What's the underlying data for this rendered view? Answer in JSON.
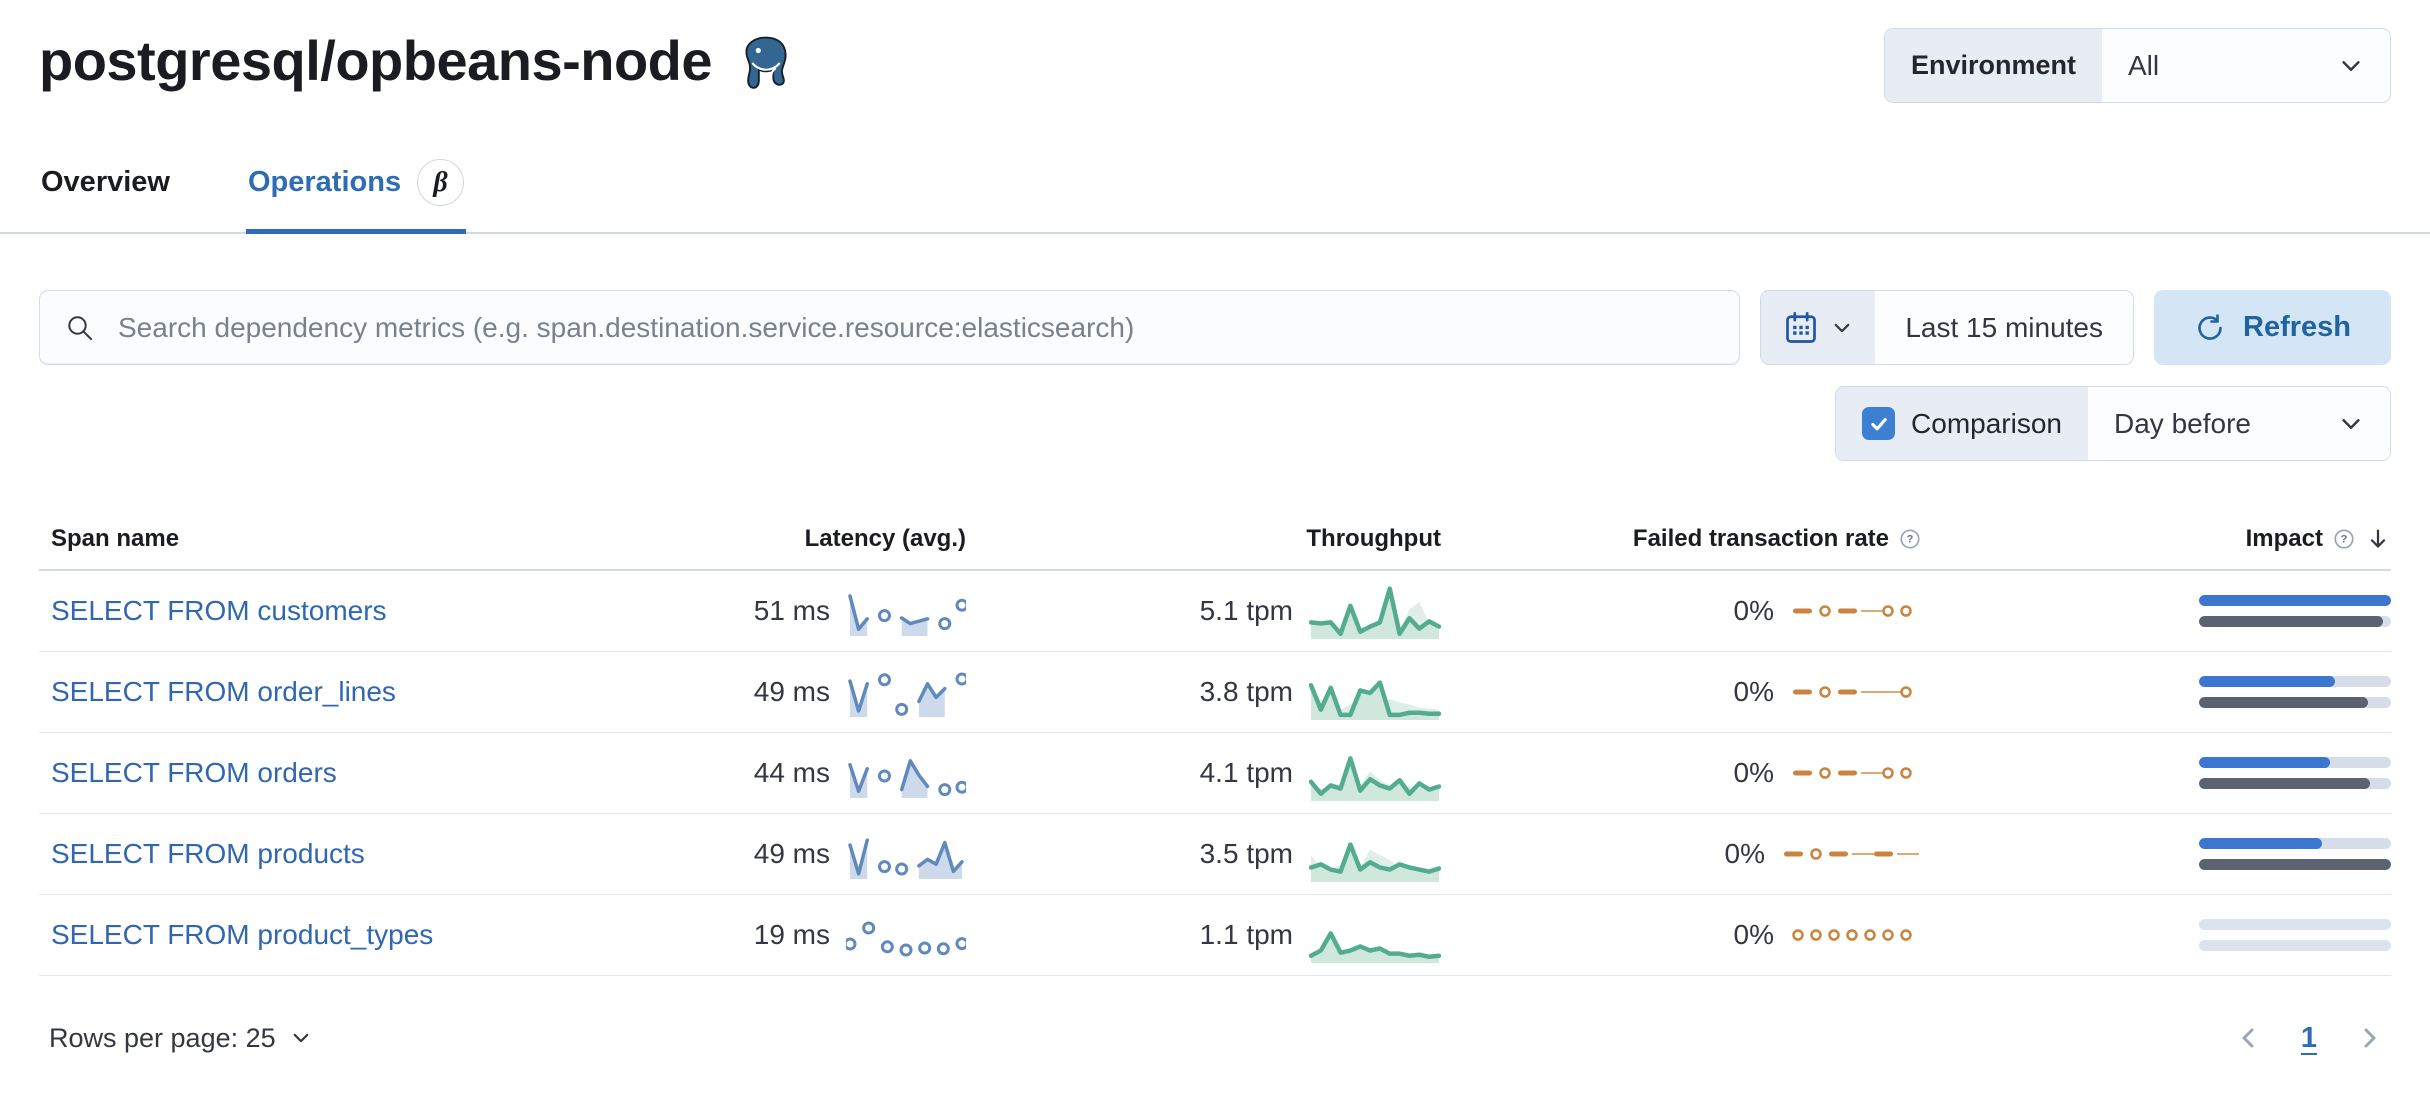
{
  "header": {
    "title": "postgresql/opbeans-node",
    "environment_label": "Environment",
    "environment_value": "All"
  },
  "tabs": [
    {
      "label": "Overview",
      "active": false
    },
    {
      "label": "Operations",
      "active": true,
      "badge": "β"
    }
  ],
  "toolbar": {
    "search_placeholder": "Search dependency metrics (e.g. span.destination.service.resource:elasticsearch)",
    "time_range": "Last 15 minutes",
    "refresh_label": "Refresh",
    "comparison_label": "Comparison",
    "comparison_checked": true,
    "comparison_value": "Day before"
  },
  "table": {
    "columns": {
      "span_name": "Span name",
      "latency": "Latency (avg.)",
      "throughput": "Throughput",
      "failed_rate": "Failed transaction rate",
      "impact": "Impact"
    },
    "sort": {
      "column": "Impact",
      "direction": "desc"
    },
    "rows": [
      {
        "span_name": "SELECT FROM customers",
        "latency": "51 ms",
        "throughput": "5.1 tpm",
        "failed_rate": "0%",
        "impact_pct": 100,
        "impact_prev_pct": 96,
        "latency_spark": [
          95,
          12,
          38,
          null,
          46,
          null,
          40,
          26,
          32,
          38,
          null,
          26,
          null,
          72
        ],
        "throughput_spark": {
          "current": [
            30,
            28,
            30,
            8,
            62,
            12,
            22,
            30,
            95,
            8,
            38,
            18,
            32,
            22
          ],
          "previous": [
            18,
            22,
            18,
            14,
            30,
            22,
            18,
            26,
            22,
            18,
            55,
            70,
            28,
            18
          ]
        },
        "failed_spark": [
          "dash",
          "ring",
          "dash",
          "thin",
          "ring",
          "ring"
        ]
      },
      {
        "span_name": "SELECT FROM order_lines",
        "latency": "49 ms",
        "throughput": "3.8 tpm",
        "failed_rate": "0%",
        "impact_pct": 71,
        "impact_prev_pct": 88,
        "latency_spark": [
          85,
          10,
          78,
          null,
          88,
          null,
          14,
          null,
          34,
          78,
          44,
          66,
          null,
          90
        ],
        "throughput_spark": {
          "current": [
            65,
            18,
            60,
            8,
            8,
            55,
            50,
            70,
            8,
            8,
            12,
            12,
            10,
            10
          ],
          "previous": [
            28,
            38,
            22,
            18,
            28,
            40,
            52,
            32,
            38,
            32,
            28,
            22,
            20,
            18
          ]
        },
        "failed_spark": [
          "dash",
          "ring",
          "dash",
          "thin",
          "thin",
          "ring"
        ]
      },
      {
        "span_name": "SELECT FROM orders",
        "latency": "44 ms",
        "throughput": "4.1 tpm",
        "failed_rate": "0%",
        "impact_pct": 68,
        "impact_prev_pct": 89,
        "latency_spark": [
          78,
          12,
          68,
          null,
          50,
          null,
          16,
          88,
          52,
          24,
          null,
          16,
          null,
          22
        ],
        "throughput_spark": {
          "current": [
            35,
            12,
            28,
            22,
            80,
            18,
            40,
            28,
            22,
            38,
            12,
            32,
            20,
            26
          ],
          "previous": [
            28,
            22,
            18,
            28,
            32,
            28,
            55,
            38,
            28,
            22,
            28,
            18,
            16,
            20
          ]
        },
        "failed_spark": [
          "dash",
          "ring",
          "dash",
          "thin",
          "ring",
          "ring"
        ]
      },
      {
        "span_name": "SELECT FROM products",
        "latency": "49 ms",
        "throughput": "3.5 tpm",
        "failed_rate": "0%",
        "impact_pct": 64,
        "impact_prev_pct": 100,
        "latency_spark": [
          80,
          8,
          92,
          null,
          26,
          null,
          20,
          null,
          28,
          44,
          32,
          86,
          14,
          38
        ],
        "throughput_spark": {
          "current": [
            26,
            32,
            22,
            18,
            70,
            22,
            36,
            26,
            22,
            32,
            26,
            22,
            18,
            24
          ],
          "previous": [
            50,
            26,
            22,
            32,
            36,
            26,
            60,
            50,
            40,
            26,
            32,
            22,
            18,
            20
          ]
        },
        "failed_spark": [
          "dash",
          "ring",
          "dash",
          "thin",
          "dash",
          "thin"
        ]
      },
      {
        "span_name": "SELECT FROM product_types",
        "latency": "19 ms",
        "throughput": "1.1 tpm",
        "failed_rate": "0%",
        "impact_pct": 0,
        "impact_prev_pct": 0,
        "latency_spark": [
          35,
          null,
          75,
          null,
          28,
          null,
          20,
          null,
          25,
          null,
          23,
          null,
          36
        ],
        "throughput_spark": {
          "current": [
            12,
            22,
            55,
            18,
            22,
            30,
            22,
            26,
            16,
            16,
            12,
            14,
            10,
            12
          ],
          "previous": [
            8,
            12,
            25,
            12,
            14,
            16,
            14,
            18,
            12,
            10,
            8,
            10,
            8,
            8
          ]
        },
        "failed_spark": [
          "ring",
          "ring",
          "ring",
          "ring",
          "ring",
          "ring",
          "ring"
        ]
      }
    ]
  },
  "footer": {
    "rows_per_page_label": "Rows per page: 25",
    "page": "1"
  },
  "colors": {
    "accent_blue": "#2e6cb5",
    "link_blue": "#3067b0",
    "impact_blue": "#3b76d1",
    "impact_gray": "#5b6270",
    "latency_line": "#6089bd",
    "latency_fill": "#ccdaeb",
    "green_line": "#54ac90",
    "green_fill": "#cfe7dd",
    "green_prev_fill": "#dfeee8",
    "orange": "#c98440",
    "orange_thin": "#dbaa77"
  }
}
